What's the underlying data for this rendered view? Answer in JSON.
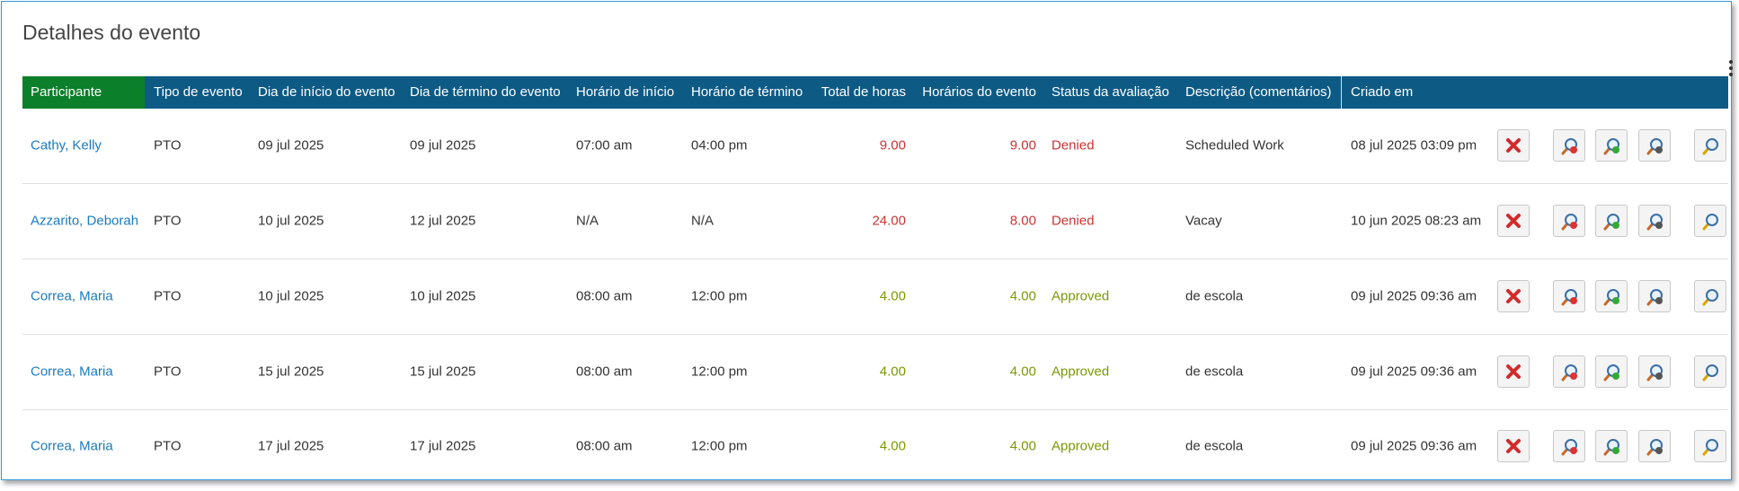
{
  "header": {
    "title": "Detalhes do evento"
  },
  "table": {
    "columns": [
      "Participante",
      "Tipo de evento",
      "Dia de início do evento",
      "Dia de término do evento",
      "Horário de início",
      "Horário de término",
      "Total de horas",
      "Horários do evento",
      "Status da avaliação",
      "Descrição (comentários)",
      "Criado em"
    ],
    "rows": [
      {
        "cells": [
          "Cathy, Kelly",
          "PTO",
          "09 jul 2025",
          "09 jul 2025",
          "07:00 am",
          "04:00 pm",
          "9.00",
          "9.00",
          "Denied",
          "Scheduled Work",
          "08 jul 2025 03:09 pm"
        ],
        "color": "#cc3333"
      },
      {
        "cells": [
          "Azzarito, Deborah",
          "PTO",
          "10 jul 2025",
          "12 jul 2025",
          "N/A",
          "N/A",
          "24.00",
          "8.00",
          "Denied",
          "Vacay",
          "10 jun 2025 08:23 am"
        ],
        "color": "#cc3333"
      },
      {
        "cells": [
          "Correa, Maria",
          "PTO",
          "10 jul 2025",
          "10 jul 2025",
          "08:00 am",
          "12:00 pm",
          "4.00",
          "4.00",
          "Approved",
          "de escola",
          "09 jul 2025 09:36 am"
        ],
        "color": "#7a9a00"
      },
      {
        "cells": [
          "Correa, Maria",
          "PTO",
          "15 jul 2025",
          "15 jul 2025",
          "08:00 am",
          "12:00 pm",
          "4.00",
          "4.00",
          "Approved",
          "de escola",
          "09 jul 2025 09:36 am"
        ],
        "color": "#7a9a00"
      },
      {
        "cells": [
          "Correa, Maria",
          "PTO",
          "17 jul 2025",
          "17 jul 2025",
          "08:00 am",
          "12:00 pm",
          "4.00",
          "4.00",
          "Approved",
          "de escola",
          "09 jul 2025 09:36 am"
        ],
        "color": "#7a9a00"
      }
    ]
  }
}
